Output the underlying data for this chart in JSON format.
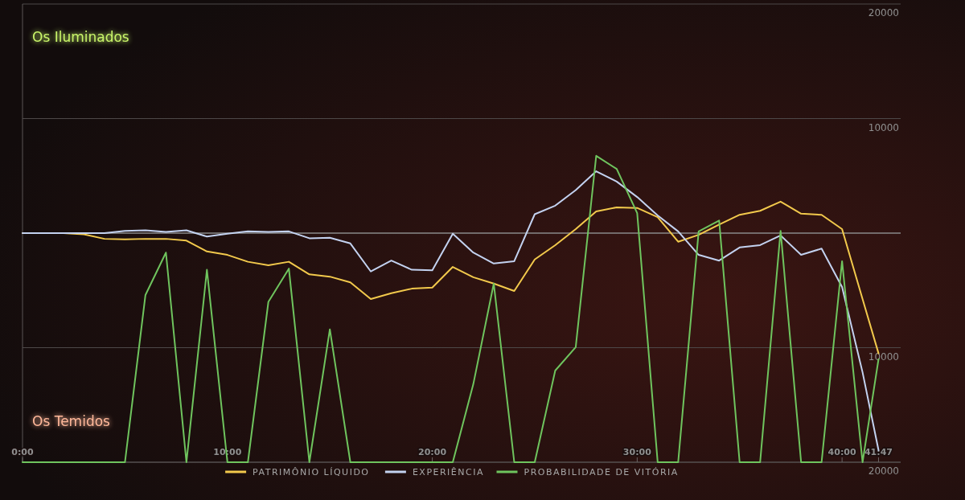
{
  "chart_data": {
    "type": "line",
    "x": [
      0,
      1,
      2,
      3,
      4,
      5,
      6,
      7,
      8,
      9,
      10,
      11,
      12,
      13,
      14,
      15,
      16,
      17,
      18,
      19,
      20,
      21,
      22,
      23,
      24,
      25,
      26,
      27,
      28,
      29,
      30,
      31,
      32,
      33,
      34,
      35,
      36,
      37,
      38,
      39,
      40,
      41,
      41.78
    ],
    "xlim": [
      0,
      42.86
    ],
    "xticks": [
      {
        "value": 0,
        "label": "0:00"
      },
      {
        "value": 10,
        "label": "10:00"
      },
      {
        "value": 20,
        "label": "20:00"
      },
      {
        "value": 30,
        "label": "30:00"
      },
      {
        "value": 40,
        "label": "40:00"
      },
      {
        "value": 41.78,
        "label": "41:47"
      }
    ],
    "ylim": [
      -20000,
      20000
    ],
    "yticks": [
      20000,
      10000,
      {
        "value": 0,
        "label": null
      },
      {
        "value": -10000,
        "label": "10000"
      },
      {
        "value": -20000,
        "label": "20000"
      }
    ],
    "grid": "y",
    "legend": "bottom",
    "marker": "none",
    "line_style": "solid",
    "annotations": [
      "Os Iluminados",
      "Os Temidos"
    ],
    "series": [
      {
        "name": "PATRIMÔNIO LÍQUIDO",
        "color": "#f2c94c",
        "values": [
          0,
          0,
          0,
          -100,
          -500,
          -550,
          -500,
          -500,
          -650,
          -1600,
          -1900,
          -2500,
          -2800,
          -2500,
          -3600,
          -3800,
          -4300,
          -5750,
          -5250,
          -4850,
          -4750,
          -2950,
          -3850,
          -4400,
          -5050,
          -2300,
          -1050,
          350,
          1900,
          2250,
          2200,
          1400,
          -750,
          -150,
          750,
          1600,
          1950,
          2750,
          1700,
          1600,
          350,
          -5750,
          -10500
        ]
      },
      {
        "name": "EXPERIÊNCIA",
        "color": "#c3d2f0",
        "values": [
          0,
          0,
          0,
          0,
          0,
          200,
          250,
          100,
          250,
          -300,
          -50,
          150,
          100,
          150,
          -450,
          -400,
          -900,
          -3350,
          -2400,
          -3200,
          -3250,
          -50,
          -1700,
          -2650,
          -2450,
          1650,
          2400,
          3750,
          5400,
          4500,
          3150,
          1550,
          150,
          -1900,
          -2400,
          -1250,
          -1050,
          -200,
          -1900,
          -1350,
          -4700,
          -12150,
          -18950
        ]
      },
      {
        "name": "PROBABILIDADE DE VITÓRIA",
        "color": "#6fc45e",
        "values": [
          -20000,
          -20000,
          -20000,
          -20000,
          -20000,
          -20000,
          -5400,
          -1700,
          -20000,
          -3200,
          -20000,
          -20000,
          -6000,
          -3100,
          -20000,
          -8400,
          -20000,
          -20000,
          -20000,
          -20000,
          -20000,
          -20000,
          -13200,
          -4400,
          -20000,
          -20000,
          -12000,
          -9950,
          6750,
          5600,
          1750,
          -20000,
          -20000,
          150,
          1100,
          -20000,
          -20000,
          200,
          -20000,
          -20000,
          -2450,
          -20000,
          -11000
        ]
      }
    ]
  }
}
